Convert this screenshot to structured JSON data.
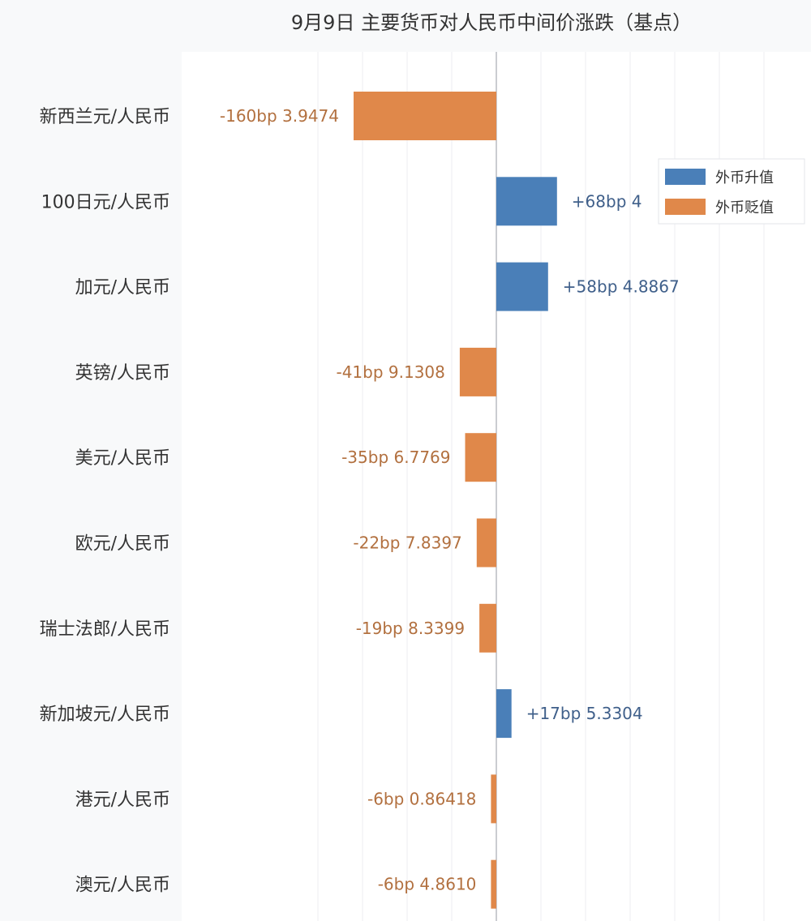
{
  "chart_data": {
    "type": "bar",
    "orientation": "horizontal",
    "title": "9月9日 主要货币对人民币中间价涨跌（基点）",
    "categories": [
      "新西兰元/人民币",
      "100日元/人民币",
      "加元/人民币",
      "英镑/人民币",
      "美元/人民币",
      "欧元/人民币",
      "瑞士法郎/人民币",
      "新加坡元/人民币",
      "港元/人民币",
      "澳元/人民币"
    ],
    "values": [
      -160,
      68,
      58,
      -41,
      -35,
      -22,
      -19,
      17,
      -6,
      -6
    ],
    "data_labels": [
      "-160bp 3.9474",
      "+68bp 4",
      "+58bp 4.8867",
      "-41bp 9.1308",
      "-35bp 6.7769",
      "-22bp 7.8397",
      "-19bp 8.3399",
      "+17bp 5.3304",
      "-6bp 0.86418",
      "-6bp 4.8610"
    ],
    "series": [
      {
        "name": "外币升值",
        "color": "#4a7fb8"
      },
      {
        "name": "外币贬值",
        "color": "#e0884a"
      }
    ],
    "xlim": [
      -200,
      300
    ],
    "grid": true,
    "legend_position": "top-right",
    "label_colors": {
      "positive": "#3f5f8a",
      "negative": "#b2703f"
    }
  }
}
